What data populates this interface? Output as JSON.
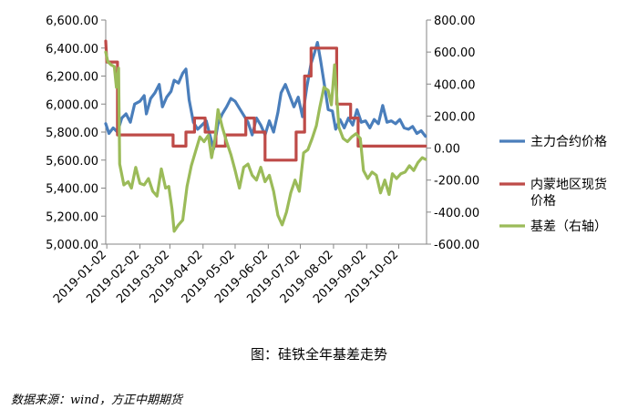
{
  "caption": "图：硅铁全年基差走势",
  "source": "数据来源：wind，方正中期期货",
  "chart_data": {
    "type": "line",
    "x_ticks": [
      "2019-01-02",
      "2019-02-02",
      "2019-03-02",
      "2019-04-02",
      "2019-05-02",
      "2019-06-02",
      "2019-07-02",
      "2019-08-02",
      "2019-09-02",
      "2019-10-02"
    ],
    "y_left": {
      "ylim": [
        5000,
        6600
      ],
      "ticks": [
        "5,000.00",
        "5,200.00",
        "5,400.00",
        "5,600.00",
        "5,800.00",
        "6,000.00",
        "6,200.00",
        "6,400.00",
        "6,600.00"
      ]
    },
    "y_right": {
      "ylim": [
        -600,
        800
      ],
      "ticks": [
        "-600.00",
        "-400.00",
        "-200.00",
        "0.00",
        "200.00",
        "400.00",
        "600.00",
        "800.00"
      ]
    },
    "grid": false,
    "legend_position": "right",
    "series": [
      {
        "name": "主力合约价格",
        "axis": "left",
        "color": "#4a7ebb",
        "points": [
          [
            "2019-01-01",
            5860
          ],
          [
            "2019-01-04",
            5790
          ],
          [
            "2019-01-08",
            5830
          ],
          [
            "2019-01-12",
            5800
          ],
          [
            "2019-01-16",
            5900
          ],
          [
            "2019-01-20",
            5930
          ],
          [
            "2019-01-24",
            5870
          ],
          [
            "2019-01-28",
            6000
          ],
          [
            "2019-02-02",
            6020
          ],
          [
            "2019-02-06",
            6060
          ],
          [
            "2019-02-08",
            5930
          ],
          [
            "2019-02-12",
            6040
          ],
          [
            "2019-02-16",
            6080
          ],
          [
            "2019-02-20",
            6140
          ],
          [
            "2019-02-23",
            5980
          ],
          [
            "2019-02-27",
            6050
          ],
          [
            "2019-03-03",
            6090
          ],
          [
            "2019-03-06",
            6170
          ],
          [
            "2019-03-10",
            6150
          ],
          [
            "2019-03-14",
            6220
          ],
          [
            "2019-03-17",
            6250
          ],
          [
            "2019-03-20",
            6030
          ],
          [
            "2019-03-24",
            5870
          ],
          [
            "2019-03-28",
            5820
          ],
          [
            "2019-04-01",
            5850
          ],
          [
            "2019-04-05",
            5880
          ],
          [
            "2019-04-08",
            5790
          ],
          [
            "2019-04-12",
            5680
          ],
          [
            "2019-04-16",
            5860
          ],
          [
            "2019-04-20",
            5930
          ],
          [
            "2019-04-24",
            5980
          ],
          [
            "2019-04-28",
            6040
          ],
          [
            "2019-05-02",
            6020
          ],
          [
            "2019-05-06",
            5970
          ],
          [
            "2019-05-10",
            5920
          ],
          [
            "2019-05-14",
            5870
          ],
          [
            "2019-05-18",
            5780
          ],
          [
            "2019-05-22",
            5900
          ],
          [
            "2019-05-26",
            5850
          ],
          [
            "2019-05-30",
            5780
          ],
          [
            "2019-06-03",
            5880
          ],
          [
            "2019-06-07",
            5800
          ],
          [
            "2019-06-11",
            5940
          ],
          [
            "2019-06-14",
            6080
          ],
          [
            "2019-06-18",
            6140
          ],
          [
            "2019-06-22",
            6060
          ],
          [
            "2019-06-26",
            5980
          ],
          [
            "2019-06-30",
            6050
          ],
          [
            "2019-07-04",
            5910
          ],
          [
            "2019-07-08",
            6120
          ],
          [
            "2019-07-12",
            6290
          ],
          [
            "2019-07-15",
            6360
          ],
          [
            "2019-07-18",
            6440
          ],
          [
            "2019-07-21",
            6310
          ],
          [
            "2019-07-24",
            6160
          ],
          [
            "2019-07-28",
            5960
          ],
          [
            "2019-08-01",
            5950
          ],
          [
            "2019-08-04",
            5820
          ],
          [
            "2019-08-08",
            5890
          ],
          [
            "2019-08-12",
            5830
          ],
          [
            "2019-08-16",
            5900
          ],
          [
            "2019-08-20",
            5850
          ],
          [
            "2019-08-24",
            5960
          ],
          [
            "2019-08-28",
            5870
          ],
          [
            "2019-09-01",
            5880
          ],
          [
            "2019-09-05",
            5830
          ],
          [
            "2019-09-09",
            5890
          ],
          [
            "2019-09-13",
            5860
          ],
          [
            "2019-09-17",
            5990
          ],
          [
            "2019-09-21",
            5870
          ],
          [
            "2019-09-25",
            5880
          ],
          [
            "2019-09-29",
            5860
          ],
          [
            "2019-10-03",
            5890
          ],
          [
            "2019-10-07",
            5830
          ],
          [
            "2019-10-11",
            5820
          ],
          [
            "2019-10-15",
            5840
          ],
          [
            "2019-10-19",
            5790
          ],
          [
            "2019-10-23",
            5810
          ],
          [
            "2019-10-27",
            5770
          ]
        ]
      },
      {
        "name": "内蒙地区现货价格",
        "axis": "left",
        "color": "#be4b48",
        "points": [
          [
            "2019-01-01",
            6450
          ],
          [
            "2019-01-02",
            6300
          ],
          [
            "2019-01-12",
            6300
          ],
          [
            "2019-01-12",
            5780
          ],
          [
            "2019-03-05",
            5780
          ],
          [
            "2019-03-05",
            5700
          ],
          [
            "2019-03-17",
            5700
          ],
          [
            "2019-03-17",
            5800
          ],
          [
            "2019-03-25",
            5800
          ],
          [
            "2019-03-25",
            5900
          ],
          [
            "2019-04-04",
            5900
          ],
          [
            "2019-04-04",
            5800
          ],
          [
            "2019-04-14",
            5800
          ],
          [
            "2019-04-14",
            5700
          ],
          [
            "2019-04-23",
            5700
          ],
          [
            "2019-04-23",
            5780
          ],
          [
            "2019-05-12",
            5780
          ],
          [
            "2019-05-12",
            5900
          ],
          [
            "2019-05-20",
            5900
          ],
          [
            "2019-05-20",
            5800
          ],
          [
            "2019-05-30",
            5800
          ],
          [
            "2019-05-30",
            5600
          ],
          [
            "2019-06-28",
            5600
          ],
          [
            "2019-06-28",
            5800
          ],
          [
            "2019-07-06",
            5800
          ],
          [
            "2019-07-06",
            6200
          ],
          [
            "2019-07-12",
            6200
          ],
          [
            "2019-07-12",
            6400
          ],
          [
            "2019-08-05",
            6400
          ],
          [
            "2019-08-05",
            6000
          ],
          [
            "2019-08-18",
            6000
          ],
          [
            "2019-08-18",
            5900
          ],
          [
            "2019-08-25",
            5900
          ],
          [
            "2019-08-25",
            5700
          ],
          [
            "2019-10-27",
            5700
          ]
        ]
      },
      {
        "name": "基差（右轴）",
        "axis": "right",
        "color": "#9bbb59",
        "points": [
          [
            "2019-01-01",
            600
          ],
          [
            "2019-01-03",
            540
          ],
          [
            "2019-01-06",
            520
          ],
          [
            "2019-01-09",
            510
          ],
          [
            "2019-01-11",
            380
          ],
          [
            "2019-01-13",
            500
          ],
          [
            "2019-01-14",
            -100
          ],
          [
            "2019-01-18",
            -230
          ],
          [
            "2019-01-22",
            -210
          ],
          [
            "2019-01-25",
            -250
          ],
          [
            "2019-01-29",
            -120
          ],
          [
            "2019-02-02",
            -220
          ],
          [
            "2019-02-06",
            -230
          ],
          [
            "2019-02-10",
            -190
          ],
          [
            "2019-02-14",
            -270
          ],
          [
            "2019-02-18",
            -300
          ],
          [
            "2019-02-22",
            -130
          ],
          [
            "2019-02-26",
            -250
          ],
          [
            "2019-03-01",
            -240
          ],
          [
            "2019-03-04",
            -380
          ],
          [
            "2019-03-06",
            -520
          ],
          [
            "2019-03-10",
            -480
          ],
          [
            "2019-03-14",
            -450
          ],
          [
            "2019-03-18",
            -240
          ],
          [
            "2019-03-22",
            -110
          ],
          [
            "2019-03-26",
            -20
          ],
          [
            "2019-03-30",
            70
          ],
          [
            "2019-04-03",
            40
          ],
          [
            "2019-04-07",
            80
          ],
          [
            "2019-04-10",
            -60
          ],
          [
            "2019-04-13",
            50
          ],
          [
            "2019-04-16",
            240
          ],
          [
            "2019-04-20",
            130
          ],
          [
            "2019-04-24",
            40
          ],
          [
            "2019-04-28",
            -40
          ],
          [
            "2019-05-02",
            -140
          ],
          [
            "2019-05-06",
            -250
          ],
          [
            "2019-05-10",
            -120
          ],
          [
            "2019-05-14",
            -100
          ],
          [
            "2019-05-18",
            -170
          ],
          [
            "2019-05-22",
            -200
          ],
          [
            "2019-05-26",
            -120
          ],
          [
            "2019-05-30",
            -210
          ],
          [
            "2019-06-03",
            -170
          ],
          [
            "2019-06-07",
            -270
          ],
          [
            "2019-06-11",
            -420
          ],
          [
            "2019-06-15",
            -480
          ],
          [
            "2019-06-19",
            -400
          ],
          [
            "2019-06-23",
            -280
          ],
          [
            "2019-06-27",
            -200
          ],
          [
            "2019-07-01",
            -270
          ],
          [
            "2019-07-05",
            -30
          ],
          [
            "2019-07-09",
            -10
          ],
          [
            "2019-07-13",
            60
          ],
          [
            "2019-07-17",
            140
          ],
          [
            "2019-07-20",
            250
          ],
          [
            "2019-07-24",
            380
          ],
          [
            "2019-07-28",
            360
          ],
          [
            "2019-07-31",
            270
          ],
          [
            "2019-08-03",
            520
          ],
          [
            "2019-08-07",
            130
          ],
          [
            "2019-08-11",
            60
          ],
          [
            "2019-08-15",
            40
          ],
          [
            "2019-08-19",
            70
          ],
          [
            "2019-08-23",
            90
          ],
          [
            "2019-08-27",
            60
          ],
          [
            "2019-08-30",
            -140
          ],
          [
            "2019-09-03",
            -190
          ],
          [
            "2019-09-07",
            -150
          ],
          [
            "2019-09-11",
            -170
          ],
          [
            "2019-09-15",
            -280
          ],
          [
            "2019-09-19",
            -200
          ],
          [
            "2019-09-23",
            -290
          ],
          [
            "2019-09-26",
            -160
          ],
          [
            "2019-09-30",
            -190
          ],
          [
            "2019-10-04",
            -160
          ],
          [
            "2019-10-08",
            -150
          ],
          [
            "2019-10-12",
            -110
          ],
          [
            "2019-10-16",
            -140
          ],
          [
            "2019-10-20",
            -90
          ],
          [
            "2019-10-24",
            -60
          ],
          [
            "2019-10-27",
            -70
          ]
        ]
      }
    ]
  }
}
